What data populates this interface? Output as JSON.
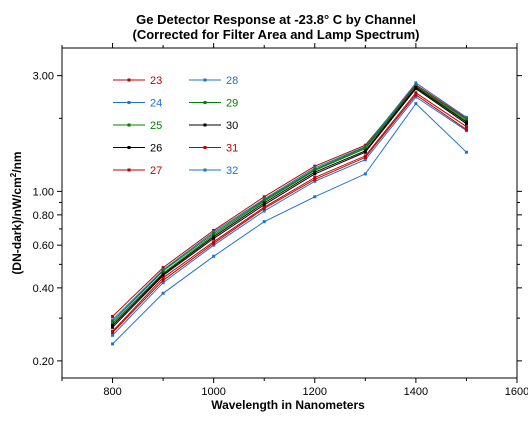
{
  "chart_data": {
    "type": "line",
    "title": "Ge Detector Response at -23.8° C by Channel",
    "subtitle": "(Corrected for Filter Area and Lamp Spectrum)",
    "xlabel": "Wavelength in Nanometers",
    "ylabel_main": "(DN-dark)/nW/cm",
    "ylabel_sup": "2",
    "ylabel_tail": "/nm",
    "xlim": [
      700,
      1600
    ],
    "ylim": [
      0.17,
      3.9
    ],
    "y_scale": "log",
    "x_ticks": [
      800,
      1000,
      1200,
      1400,
      1600
    ],
    "x_tick_labels": [
      "800",
      "1000",
      "1200",
      "1400",
      "1600"
    ],
    "y_ticks": [
      0.2,
      0.4,
      0.6,
      0.8,
      1.0,
      3.0
    ],
    "y_tick_labels": [
      "0.20",
      "0.40",
      "0.60",
      "0.80",
      "1.00",
      "3.00"
    ],
    "y_minor_ticks": [
      0.3,
      0.5,
      0.7,
      0.9,
      2.0
    ],
    "grid": false,
    "legend_position": "top-left",
    "x": [
      800,
      900,
      1000,
      1100,
      1200,
      1300,
      1400,
      1500
    ],
    "series": [
      {
        "name": "23",
        "color": "#c00000",
        "values": [
          0.305,
          0.485,
          0.69,
          0.95,
          1.27,
          1.55,
          2.75,
          2.0
        ]
      },
      {
        "name": "24",
        "color": "#2070d0",
        "values": [
          0.295,
          0.475,
          0.68,
          0.93,
          1.25,
          1.53,
          2.8,
          2.02
        ]
      },
      {
        "name": "25",
        "color": "#008000",
        "values": [
          0.285,
          0.46,
          0.66,
          0.91,
          1.22,
          1.5,
          2.7,
          1.95
        ]
      },
      {
        "name": "26",
        "color": "#000000",
        "values": [
          0.275,
          0.45,
          0.64,
          0.88,
          1.18,
          1.45,
          2.65,
          1.9
        ]
      },
      {
        "name": "27",
        "color": "#c00000",
        "values": [
          0.265,
          0.44,
          0.62,
          0.86,
          1.14,
          1.4,
          2.55,
          1.85
        ]
      },
      {
        "name": "28",
        "color": "#2070d0",
        "values": [
          0.255,
          0.42,
          0.6,
          0.83,
          1.1,
          1.35,
          2.45,
          1.78
        ]
      },
      {
        "name": "29",
        "color": "#008000",
        "values": [
          0.29,
          0.47,
          0.67,
          0.92,
          1.23,
          1.52,
          2.72,
          1.98
        ]
      },
      {
        "name": "30",
        "color": "#000000",
        "values": [
          0.28,
          0.455,
          0.65,
          0.895,
          1.2,
          1.47,
          2.68,
          1.93
        ]
      },
      {
        "name": "31",
        "color": "#c00000",
        "values": [
          0.262,
          0.43,
          0.61,
          0.85,
          1.12,
          1.38,
          2.5,
          1.8
        ]
      },
      {
        "name": "32",
        "color": "#2070d0",
        "values": [
          0.235,
          0.38,
          0.54,
          0.75,
          0.95,
          1.18,
          2.3,
          1.45
        ]
      }
    ]
  }
}
